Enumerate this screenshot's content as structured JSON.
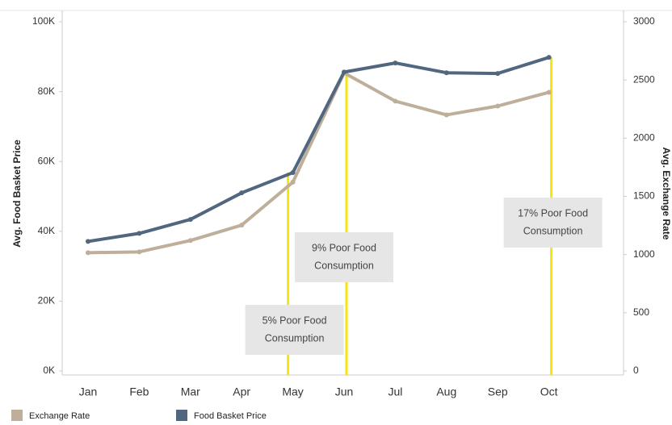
{
  "chart_data": {
    "type": "line",
    "y_axis_label": "Avg. Food Basket Price",
    "y2_axis_label": "Avg. Exchange Rate",
    "categories": [
      "Jan",
      "Feb",
      "Mar",
      "Apr",
      "May",
      "Jun",
      "Jul",
      "Aug",
      "Sep",
      "Oct"
    ],
    "series": [
      {
        "name": "Exchange Rate",
        "color": "#bfae99",
        "axis": "y2",
        "values": [
          1016,
          1023,
          1121,
          1253,
          1622,
          2561,
          2318,
          2200,
          2276,
          2394
        ]
      },
      {
        "name": "Food Basket Price",
        "color": "#51667f",
        "values": [
          37100,
          39400,
          43400,
          51000,
          56800,
          85600,
          88200,
          85400,
          85200,
          89800
        ]
      }
    ],
    "ylim": [
      0,
      100000
    ],
    "yticks": [
      {
        "value": 0,
        "label": "0K"
      },
      {
        "value": 20000,
        "label": "20K"
      },
      {
        "value": 40000,
        "label": "40K"
      },
      {
        "value": 60000,
        "label": "60K"
      },
      {
        "value": 80000,
        "label": "80K"
      },
      {
        "value": 100000,
        "label": "100K"
      }
    ],
    "y2lim": [
      0,
      3000
    ],
    "y2ticks": [
      0,
      500,
      1000,
      1500,
      2000,
      2500,
      3000
    ],
    "annotations": [
      {
        "category": "May",
        "lines": [
          "5% Poor Food",
          "Consumption"
        ]
      },
      {
        "category": "Jun",
        "lines": [
          "9% Poor Food",
          "Consumption"
        ]
      },
      {
        "category": "Oct",
        "lines": [
          "17% Poor Food",
          "Consumption"
        ]
      }
    ],
    "annotation_color": "#f5e50a",
    "legend_position": "bottom-left"
  }
}
